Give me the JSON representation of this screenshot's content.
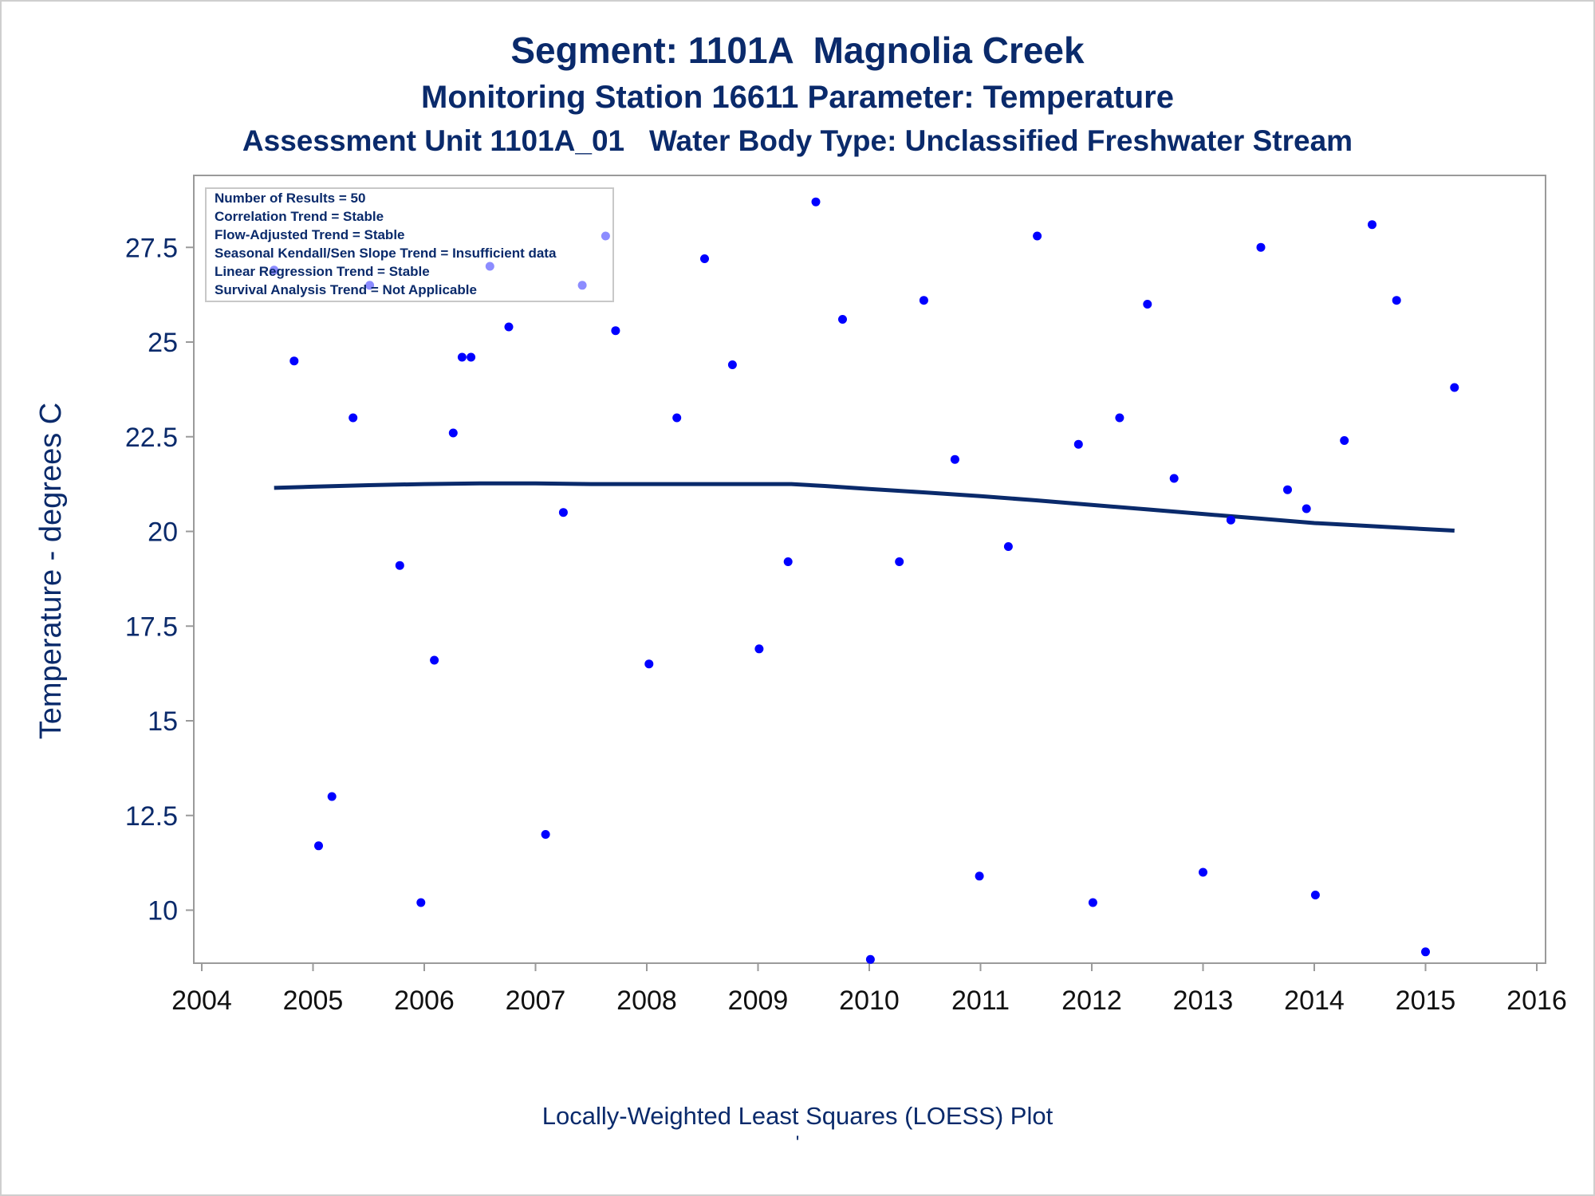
{
  "titles": {
    "line1": "Segment: 1101A  Magnolia Creek",
    "line2": "Monitoring Station 16611 Parameter: Temperature",
    "line3": "Assessment Unit 1101A_01   Water Body Type: Unclassified Freshwater Stream"
  },
  "footnotes": {
    "line1": "Locally-Weighted Least Squares (LOESS) Plot",
    "line2": "'"
  },
  "colors": {
    "text": "#0a2a6b",
    "points": "#0000ff",
    "loess_line": "#0a2a6b",
    "axis": "#9a9a9a"
  },
  "chart_data": {
    "type": "scatter",
    "ylabel": "Temperature - degrees C",
    "xlabel": "",
    "xlim": [
      2004,
      2016
    ],
    "ylim": [
      8.6,
      29.4
    ],
    "x_ticks": [
      2004,
      2005,
      2006,
      2007,
      2008,
      2009,
      2010,
      2011,
      2012,
      2013,
      2014,
      2015,
      2016
    ],
    "y_ticks": [
      10,
      12.5,
      15,
      17.5,
      20,
      22.5,
      25,
      27.5
    ],
    "y_tick_labels": [
      "10",
      "12.5",
      "15",
      "17.5",
      "20",
      "22.5",
      "25",
      "27.5"
    ],
    "inset_box": {
      "position": "top-left",
      "lines": [
        "Number of Results = 50",
        "Correlation Trend = Stable",
        "Flow-Adjusted Trend = Stable",
        "Seasonal Kendall/Sen Slope Trend = Insufficient data",
        "Linear Regression Trend = Stable",
        "Survival Analysis Trend = Not Applicable"
      ]
    },
    "series": [
      {
        "kind": "points",
        "x": [
          2004.65,
          2004.83,
          2005.05,
          2005.17,
          2005.36,
          2005.51,
          2005.78,
          2005.97,
          2006.09,
          2006.26,
          2006.34,
          2006.42,
          2006.59,
          2006.76,
          2007.09,
          2007.25,
          2007.42,
          2007.63,
          2007.72,
          2008.02,
          2008.27,
          2008.52,
          2008.77,
          2009.01,
          2009.27,
          2009.52,
          2009.76,
          2010.01,
          2010.27,
          2010.49,
          2010.77,
          2010.99,
          2011.25,
          2011.51,
          2011.88,
          2012.01,
          2012.25,
          2012.5,
          2012.74,
          2013.0,
          2013.25,
          2013.52,
          2013.76,
          2013.93,
          2014.01,
          2014.27,
          2014.52,
          2014.74,
          2015.0,
          2015.26
        ],
        "y": [
          26.9,
          24.5,
          11.7,
          13.0,
          23.0,
          26.5,
          19.1,
          10.2,
          16.6,
          22.6,
          24.6,
          24.6,
          27.0,
          25.4,
          12.0,
          20.5,
          26.5,
          27.8,
          25.3,
          16.5,
          23.0,
          27.2,
          24.4,
          16.9,
          19.2,
          28.7,
          25.6,
          8.7,
          19.2,
          26.1,
          21.9,
          10.9,
          19.6,
          27.8,
          22.3,
          10.2,
          23.0,
          26.0,
          21.4,
          11.0,
          20.3,
          27.5,
          21.1,
          20.6,
          10.4,
          22.4,
          28.1,
          26.1,
          8.9,
          23.8
        ]
      },
      {
        "kind": "loess",
        "x": [
          2004.65,
          2005.0,
          2005.5,
          2006.0,
          2006.5,
          2007.0,
          2007.5,
          2008.0,
          2008.5,
          2009.0,
          2009.3,
          2009.6,
          2010.0,
          2010.5,
          2011.0,
          2011.5,
          2012.0,
          2012.5,
          2013.0,
          2013.5,
          2014.0,
          2014.5,
          2015.0,
          2015.26
        ],
        "y": [
          21.15,
          21.18,
          21.22,
          21.25,
          21.27,
          21.27,
          21.25,
          21.25,
          21.25,
          21.25,
          21.25,
          21.2,
          21.12,
          21.03,
          20.93,
          20.82,
          20.7,
          20.58,
          20.46,
          20.34,
          20.22,
          20.14,
          20.06,
          20.02
        ]
      }
    ]
  }
}
